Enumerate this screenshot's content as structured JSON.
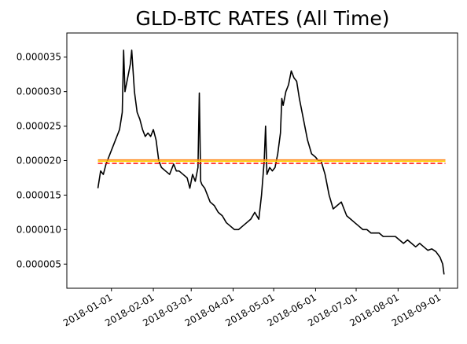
{
  "chart_data": {
    "type": "line",
    "title": "GLD-BTC RATES (All Time)",
    "xlabel": "",
    "ylabel": "",
    "x_tick_labels": [
      "2018-01-01",
      "2018-02-01",
      "2018-03-01",
      "2018-04-01",
      "2018-05-01",
      "2018-06-01",
      "2018-07-01",
      "2018-08-01",
      "2018-09-01"
    ],
    "y_tick_labels": [
      "0.000005",
      "0.000010",
      "0.000015",
      "0.000020",
      "0.000025",
      "0.000030",
      "0.000035"
    ],
    "xlim": [
      "2017-11-29",
      "2018-09-14"
    ],
    "ylim": [
      1.5e-06,
      3.85e-05
    ],
    "grid": false,
    "series": [
      {
        "color": "#000000",
        "style": "solid",
        "x": [
          "2017-12-22",
          "2017-12-24",
          "2017-12-26",
          "2017-12-28",
          "2017-12-30",
          "2018-01-01",
          "2018-01-03",
          "2018-01-05",
          "2018-01-07",
          "2018-01-09",
          "2018-01-10",
          "2018-01-11",
          "2018-01-13",
          "2018-01-15",
          "2018-01-16",
          "2018-01-17",
          "2018-01-18",
          "2018-01-20",
          "2018-01-22",
          "2018-01-24",
          "2018-01-26",
          "2018-01-28",
          "2018-01-30",
          "2018-02-01",
          "2018-02-03",
          "2018-02-05",
          "2018-02-07",
          "2018-02-10",
          "2018-02-13",
          "2018-02-16",
          "2018-02-18",
          "2018-02-20",
          "2018-02-23",
          "2018-02-26",
          "2018-02-28",
          "2018-03-02",
          "2018-03-04",
          "2018-03-06",
          "2018-03-07",
          "2018-03-08",
          "2018-03-09",
          "2018-03-11",
          "2018-03-13",
          "2018-03-15",
          "2018-03-18",
          "2018-03-21",
          "2018-03-24",
          "2018-03-27",
          "2018-03-30",
          "2018-04-02",
          "2018-04-05",
          "2018-04-08",
          "2018-04-11",
          "2018-04-14",
          "2018-04-17",
          "2018-04-20",
          "2018-04-22",
          "2018-04-24",
          "2018-04-25",
          "2018-04-26",
          "2018-04-28",
          "2018-04-30",
          "2018-05-02",
          "2018-05-04",
          "2018-05-06",
          "2018-05-07",
          "2018-05-08",
          "2018-05-10",
          "2018-05-12",
          "2018-05-14",
          "2018-05-16",
          "2018-05-18",
          "2018-05-20",
          "2018-05-22",
          "2018-05-24",
          "2018-05-26",
          "2018-05-29",
          "2018-06-01",
          "2018-06-03",
          "2018-06-05",
          "2018-06-08",
          "2018-06-11",
          "2018-06-14",
          "2018-06-17",
          "2018-06-20",
          "2018-06-22",
          "2018-06-24",
          "2018-06-27",
          "2018-06-30",
          "2018-07-03",
          "2018-07-06",
          "2018-07-09",
          "2018-07-12",
          "2018-07-15",
          "2018-07-18",
          "2018-07-21",
          "2018-07-24",
          "2018-07-27",
          "2018-07-30",
          "2018-08-02",
          "2018-08-05",
          "2018-08-08",
          "2018-08-11",
          "2018-08-14",
          "2018-08-17",
          "2018-08-20",
          "2018-08-23",
          "2018-08-26",
          "2018-08-29",
          "2018-09-01",
          "2018-09-03",
          "2018-09-04"
        ],
        "values": [
          1.6e-05,
          1.85e-05,
          1.8e-05,
          1.95e-05,
          2.05e-05,
          2.15e-05,
          2.25e-05,
          2.35e-05,
          2.45e-05,
          2.7e-05,
          3.6e-05,
          3e-05,
          3.2e-05,
          3.4e-05,
          3.6e-05,
          3.3e-05,
          3e-05,
          2.7e-05,
          2.6e-05,
          2.45e-05,
          2.35e-05,
          2.4e-05,
          2.35e-05,
          2.45e-05,
          2.3e-05,
          2e-05,
          1.9e-05,
          1.85e-05,
          1.8e-05,
          1.95e-05,
          1.85e-05,
          1.85e-05,
          1.8e-05,
          1.75e-05,
          1.6e-05,
          1.8e-05,
          1.7e-05,
          1.9e-05,
          2.98e-05,
          1.7e-05,
          1.65e-05,
          1.6e-05,
          1.5e-05,
          1.4e-05,
          1.35e-05,
          1.25e-05,
          1.2e-05,
          1.1e-05,
          1.05e-05,
          1e-05,
          1e-05,
          1.05e-05,
          1.1e-05,
          1.15e-05,
          1.25e-05,
          1.15e-05,
          1.5e-05,
          2e-05,
          2.5e-05,
          1.8e-05,
          1.9e-05,
          1.85e-05,
          1.9e-05,
          2.1e-05,
          2.4e-05,
          2.9e-05,
          2.8e-05,
          3e-05,
          3.1e-05,
          3.3e-05,
          3.2e-05,
          3.15e-05,
          2.9e-05,
          2.7e-05,
          2.5e-05,
          2.3e-05,
          2.1e-05,
          2.05e-05,
          2e-05,
          2e-05,
          1.8e-05,
          1.5e-05,
          1.3e-05,
          1.35e-05,
          1.4e-05,
          1.3e-05,
          1.2e-05,
          1.15e-05,
          1.1e-05,
          1.05e-05,
          1e-05,
          1e-05,
          9.5e-06,
          9.5e-06,
          9.5e-06,
          9e-06,
          9e-06,
          9e-06,
          9e-06,
          8.5e-06,
          8e-06,
          8.5e-06,
          8e-06,
          7.5e-06,
          8e-06,
          7.5e-06,
          7e-06,
          7.2e-06,
          6.8e-06,
          6e-06,
          5e-06,
          3.5e-06
        ]
      },
      {
        "color": "#ff7f0e",
        "style": "solid",
        "x": [
          "2017-12-22",
          "2018-09-05"
        ],
        "values": [
          2.01e-05,
          2.01e-05
        ]
      },
      {
        "color": "#ffd700",
        "style": "solid",
        "x": [
          "2017-12-22",
          "2018-09-05"
        ],
        "values": [
          1.99e-05,
          1.99e-05
        ]
      },
      {
        "color": "#ff0000",
        "style": "dashed",
        "x": [
          "2017-12-22",
          "2018-09-05"
        ],
        "values": [
          1.96e-05,
          1.96e-05
        ]
      }
    ]
  }
}
